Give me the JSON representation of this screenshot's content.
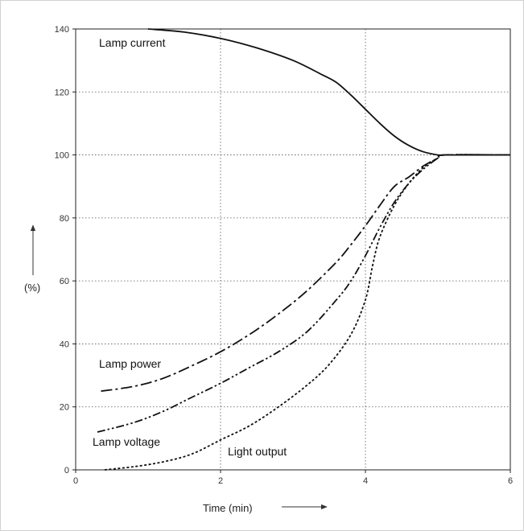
{
  "chart_data": {
    "type": "line",
    "xlabel": "Time (min)",
    "ylabel": "(%)",
    "xlim": [
      0,
      6
    ],
    "ylim": [
      0,
      140
    ],
    "x_ticks": [
      "0",
      "2",
      "4",
      "6"
    ],
    "y_ticks": [
      "0",
      "20",
      "40",
      "60",
      "80",
      "100",
      "120",
      "140"
    ],
    "grid": true,
    "series": [
      {
        "name": "Lamp current",
        "style": "solid",
        "x": [
          1.0,
          1.5,
          2.0,
          2.5,
          3.0,
          3.4,
          3.6,
          3.8,
          4.0,
          4.2,
          4.4,
          4.6,
          4.8,
          5.0,
          5.1,
          5.5,
          6.0
        ],
        "y": [
          140,
          139,
          137,
          134,
          130,
          125.5,
          123,
          119,
          114.5,
          110,
          106,
          103,
          101,
          100,
          100,
          100,
          100
        ]
      },
      {
        "name": "Lamp power",
        "style": "dash-dot",
        "x": [
          0.35,
          0.8,
          1.2,
          1.6,
          2.0,
          2.4,
          2.8,
          3.2,
          3.6,
          3.8,
          4.0,
          4.2,
          4.4,
          4.6,
          4.8,
          5.0,
          5.1,
          6.0
        ],
        "y": [
          25,
          26.5,
          29,
          33,
          37.5,
          43,
          49.5,
          57,
          66,
          71.5,
          77.5,
          84,
          90,
          93,
          96.5,
          99,
          100,
          100
        ]
      },
      {
        "name": "Lamp voltage",
        "style": "dash-dot-dot",
        "x": [
          0.3,
          0.8,
          1.2,
          1.6,
          2.0,
          2.4,
          2.8,
          3.2,
          3.6,
          3.8,
          4.0,
          4.2,
          4.4,
          4.6,
          4.8,
          5.0,
          5.1,
          6.0
        ],
        "y": [
          12,
          15,
          18.5,
          23,
          27.5,
          32.5,
          37.5,
          44,
          54,
          60,
          68,
          77,
          85,
          91,
          95.5,
          99,
          100,
          100
        ]
      },
      {
        "name": "Light output",
        "style": "dotted",
        "x": [
          0.4,
          0.8,
          1.2,
          1.6,
          2.0,
          2.4,
          2.8,
          3.2,
          3.5,
          3.8,
          4.0,
          4.1,
          4.2,
          4.4,
          4.6,
          4.8,
          5.0,
          5.1,
          6.0
        ],
        "y": [
          0,
          1,
          2.5,
          5,
          9.5,
          14,
          20,
          27,
          33.5,
          43,
          54,
          65,
          74,
          84,
          91,
          96,
          99,
          100,
          100
        ]
      }
    ],
    "annotations": {
      "lamp_current": "Lamp current",
      "lamp_power": "Lamp power",
      "lamp_voltage": "Lamp voltage",
      "light_output": "Light output"
    }
  }
}
